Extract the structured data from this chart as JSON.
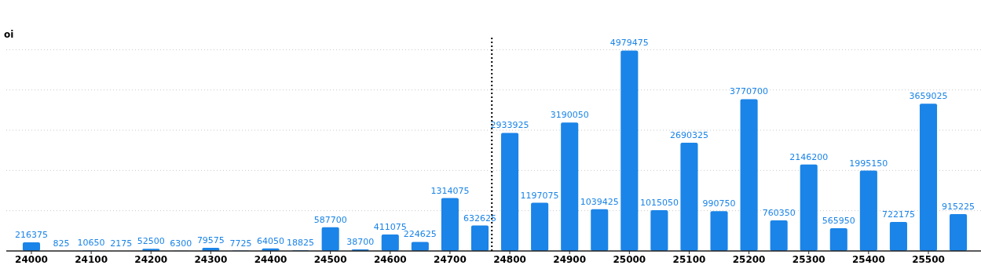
{
  "chart_data": {
    "type": "bar",
    "ylabel": "oi",
    "x": [
      24000,
      24050,
      24100,
      24150,
      24200,
      24250,
      24300,
      24350,
      24400,
      24450,
      24500,
      24550,
      24600,
      24650,
      24700,
      24750,
      24800,
      24850,
      24900,
      24950,
      25000,
      25050,
      25100,
      25150,
      25200,
      25250,
      25300,
      25350,
      25400,
      25450,
      25500,
      25550
    ],
    "values": [
      216375,
      825,
      10650,
      2175,
      52500,
      6300,
      79575,
      7725,
      64050,
      18825,
      587700,
      38700,
      411075,
      224625,
      1314075,
      632625,
      2933925,
      1197075,
      3190050,
      1039425,
      4979475,
      1015050,
      2690325,
      990750,
      3770700,
      760350,
      2146200,
      565950,
      1995150,
      722175,
      3659025,
      915225
    ],
    "color": "#1a84e8",
    "xlim": [
      23958,
      25588
    ],
    "xticks": [
      24000,
      24100,
      24200,
      24300,
      24400,
      24500,
      24600,
      24700,
      24800,
      24900,
      25000,
      25100,
      25200,
      25300,
      25400,
      25500
    ],
    "ylim": [
      0,
      5300000
    ],
    "yticks": [
      {
        "value": 1000000,
        "label": null
      },
      {
        "value": 2000000,
        "label": null
      },
      {
        "value": 3000000,
        "label": null
      },
      {
        "value": 4000000,
        "label": null
      },
      {
        "value": 5000000,
        "label": null
      }
    ],
    "grid": "y",
    "tick_labels": "x",
    "data_labels": true,
    "ref_lines": [
      {
        "axis": "x",
        "value": 24770,
        "label": null,
        "color": "#000000",
        "line_style": "dotted"
      }
    ]
  }
}
